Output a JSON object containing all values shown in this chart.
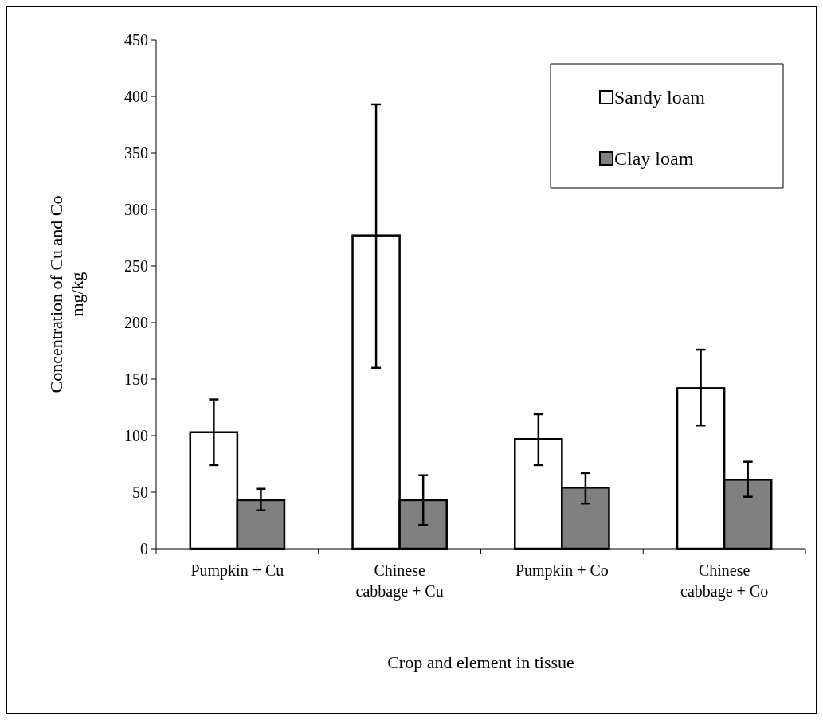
{
  "chart_data": {
    "type": "bar",
    "xlabel": "Crop and element in tissue",
    "ylabel": "Concentration of Cu and Co mg/kg",
    "categories": [
      "Pumpkin + Cu",
      "Chinese cabbage + Cu",
      "Pumpkin + Co",
      "Chinese cabbage + Co"
    ],
    "series": [
      {
        "name": "Sandy loam",
        "color": "#ffffff",
        "values": [
          103,
          277,
          97,
          142
        ],
        "errors": [
          [
            74,
            132
          ],
          [
            160,
            393
          ],
          [
            74,
            119
          ],
          [
            109,
            176
          ]
        ]
      },
      {
        "name": "Clay loam",
        "color": "#808080",
        "values": [
          43,
          43,
          54,
          61
        ],
        "errors": [
          [
            34,
            53
          ],
          [
            21,
            65
          ],
          [
            40,
            67
          ],
          [
            46,
            77
          ]
        ]
      }
    ],
    "ylim": [
      0,
      450
    ],
    "yticks": [
      0,
      50,
      100,
      150,
      200,
      250,
      300,
      350,
      400,
      450
    ],
    "legend": "top right",
    "grid": false
  }
}
